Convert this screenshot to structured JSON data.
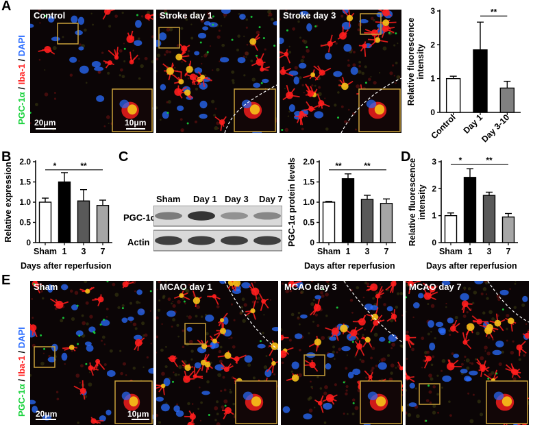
{
  "panels": {
    "A": "A",
    "B": "B",
    "C": "C",
    "D": "D",
    "E": "E"
  },
  "colors": {
    "green": "#19d23c",
    "red": "#ff1e1e",
    "blue": "#2a6cff",
    "inset_border": "#c9a23a"
  },
  "stain": {
    "part1": "PGC-1α",
    "sep1": " / ",
    "part2": "Iba-1",
    "sep2": " / ",
    "part3": "DAPI"
  },
  "panel_a": {
    "images": [
      "Control",
      "Stroke day 1",
      "Stroke day 3"
    ],
    "scale_main": "20μm",
    "scale_inset": "10μm"
  },
  "panel_e": {
    "images": [
      "Sham",
      "MCAO day 1",
      "MCAO day 3",
      "MCAO day 7"
    ],
    "scale_main": "20μm",
    "scale_inset": "10μm"
  },
  "blot": {
    "lanes": [
      "Sham",
      "Day 1",
      "Day 3",
      "Day 7"
    ],
    "rows": [
      "PGC-1α",
      "Actin"
    ],
    "pgc_intensity": [
      0.55,
      0.9,
      0.45,
      0.5
    ],
    "actin_intensity": [
      0.85,
      0.85,
      0.85,
      0.85
    ]
  },
  "chart_data": [
    {
      "id": "A",
      "type": "bar",
      "categories": [
        "Control",
        "Day 1",
        "Day 3-10"
      ],
      "values": [
        1.0,
        1.85,
        0.72
      ],
      "errors": [
        0.07,
        0.82,
        0.2
      ],
      "fills": [
        "#ffffff",
        "#000000",
        "#808080"
      ],
      "ylabel": "Relative fluorescence intensity",
      "ylabel_lines": [
        "Relative fluorescence",
        "intensity"
      ],
      "ylim": [
        0,
        3
      ],
      "yticks": [
        0,
        1,
        2,
        3
      ],
      "ytick_labels": [
        "0",
        "1",
        "2",
        "3"
      ],
      "xlabel": "",
      "rotate_x": true,
      "sig": [
        {
          "from": 1,
          "to": 2,
          "label": "**",
          "y": 2.85
        }
      ]
    },
    {
      "id": "B",
      "type": "bar",
      "categories": [
        "Sham",
        "1",
        "3",
        "7"
      ],
      "values": [
        1.0,
        1.5,
        1.03,
        0.92
      ],
      "errors": [
        0.1,
        0.23,
        0.28,
        0.13
      ],
      "fills": [
        "#ffffff",
        "#000000",
        "#595959",
        "#a6a6a6"
      ],
      "ylabel": "Relative expression",
      "ylabel_lines": [
        "Relative expression"
      ],
      "ylim": [
        0,
        2.0
      ],
      "yticks": [
        0,
        0.5,
        1.0,
        1.5,
        2.0
      ],
      "ytick_labels": [
        "0",
        "0.5",
        "1.0",
        "1.5",
        "2.0"
      ],
      "xlabel": "Days after reperfusion",
      "rotate_x": false,
      "sig": [
        {
          "from": 0,
          "to": 1,
          "label": "*",
          "y": 1.8
        },
        {
          "from": 1,
          "to": 3,
          "label": "**",
          "y": 1.8
        }
      ]
    },
    {
      "id": "C",
      "type": "bar",
      "categories": [
        "Sham",
        "1",
        "3",
        "7"
      ],
      "values": [
        1.0,
        1.58,
        1.07,
        0.97
      ],
      "errors": [
        0.02,
        0.12,
        0.1,
        0.11
      ],
      "fills": [
        "#ffffff",
        "#000000",
        "#595959",
        "#a6a6a6"
      ],
      "ylabel": "PGC-1α protein levels",
      "ylabel_lines": [
        "PGC-1α protein levels"
      ],
      "ylim": [
        0,
        2.0
      ],
      "yticks": [
        0,
        0.5,
        1.0,
        1.5,
        2.0
      ],
      "ytick_labels": [
        "0",
        "0.5",
        "1.0",
        "1.5",
        "2.0"
      ],
      "xlabel": "Days after reperfusion",
      "rotate_x": false,
      "sig": [
        {
          "from": 0,
          "to": 1,
          "label": "**",
          "y": 1.8
        },
        {
          "from": 1,
          "to": 3,
          "label": "**",
          "y": 1.8
        }
      ]
    },
    {
      "id": "D",
      "type": "bar",
      "categories": [
        "Sham",
        "1",
        "3",
        "7"
      ],
      "values": [
        1.0,
        2.42,
        1.75,
        0.95
      ],
      "errors": [
        0.1,
        0.32,
        0.12,
        0.13
      ],
      "fills": [
        "#ffffff",
        "#000000",
        "#595959",
        "#a6a6a6"
      ],
      "ylabel": "Relative fluorescence intensity",
      "ylabel_lines": [
        "Relative fluorescence",
        "intensity"
      ],
      "ylim": [
        0,
        3
      ],
      "yticks": [
        0,
        1,
        2,
        3
      ],
      "ytick_labels": [
        "0",
        "1",
        "2",
        "3"
      ],
      "xlabel": "Days after reperfusion",
      "rotate_x": false,
      "sig": [
        {
          "from": 0,
          "to": 1,
          "label": "*",
          "y": 2.9
        },
        {
          "from": 1,
          "to": 3,
          "label": "**",
          "y": 2.9
        }
      ]
    }
  ]
}
